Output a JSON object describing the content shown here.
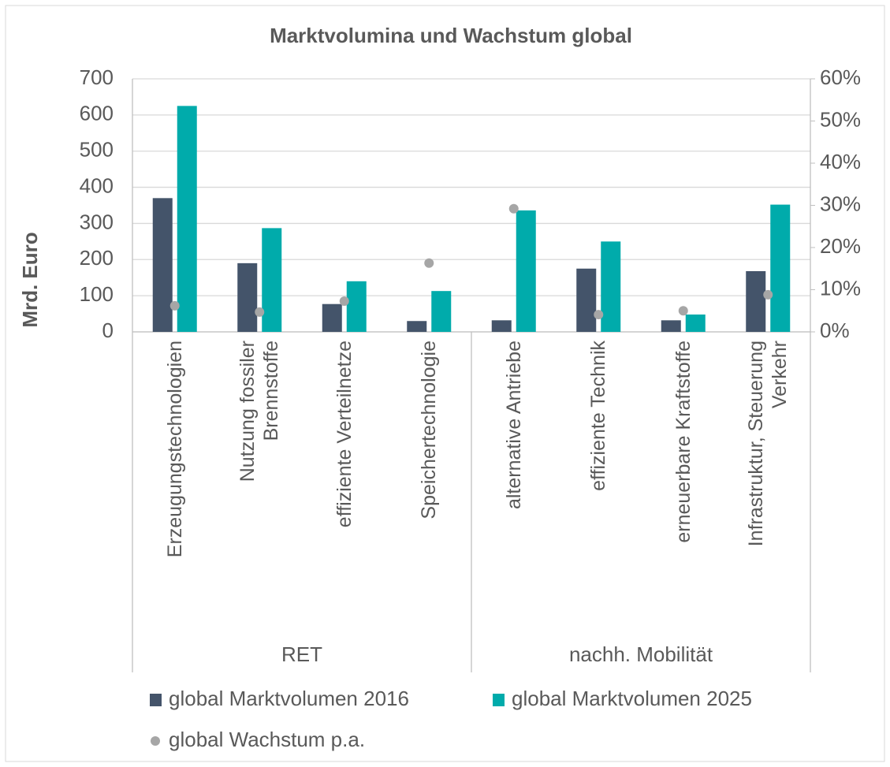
{
  "chart_data": {
    "type": "bar",
    "title": "Marktvolumina und Wachstum global",
    "ylabel": "Mrd. Euro",
    "categories": [
      "Erzeugungstechnologien",
      "Nutzung fossiler\nBrennstoffe",
      "effiziente Verteilnetze",
      "Speichertechnologie",
      "alternative Antriebe",
      "effiziente Technik",
      "erneuerbare Kraftstoffe",
      "Infrastruktur, Steuerung\nVerkehr"
    ],
    "groups": [
      {
        "name": "RET",
        "size": 4
      },
      {
        "name": "nachh. Mobilität",
        "size": 4
      }
    ],
    "series": [
      {
        "name": "global Marktvolumen 2016",
        "type": "bar",
        "color": "#44546a",
        "values": [
          370,
          190,
          77,
          30,
          32,
          175,
          32,
          168
        ]
      },
      {
        "name": "global Marktvolumen 2025",
        "type": "bar",
        "color": "#00abab",
        "values": [
          625,
          287,
          140,
          113,
          336,
          250,
          48,
          352
        ]
      },
      {
        "name": "global Wachstum p.a.",
        "type": "scatter",
        "axis": "y2",
        "color": "#a6a6a6",
        "values": [
          6.2,
          4.7,
          7.3,
          16.3,
          29.2,
          4.1,
          5.0,
          8.8
        ]
      }
    ],
    "ylim": [
      0,
      700
    ],
    "yticks": [
      0,
      100,
      200,
      300,
      400,
      500,
      600,
      700
    ],
    "y2lim": [
      0,
      60
    ],
    "y2ticks": [
      {
        "value": 0,
        "label": "0%"
      },
      {
        "value": 10,
        "label": "10%"
      },
      {
        "value": 20,
        "label": "20%"
      },
      {
        "value": 30,
        "label": "30%"
      },
      {
        "value": 40,
        "label": "40%"
      },
      {
        "value": 50,
        "label": "50%"
      },
      {
        "value": 60,
        "label": "60%"
      }
    ],
    "grid": true
  }
}
